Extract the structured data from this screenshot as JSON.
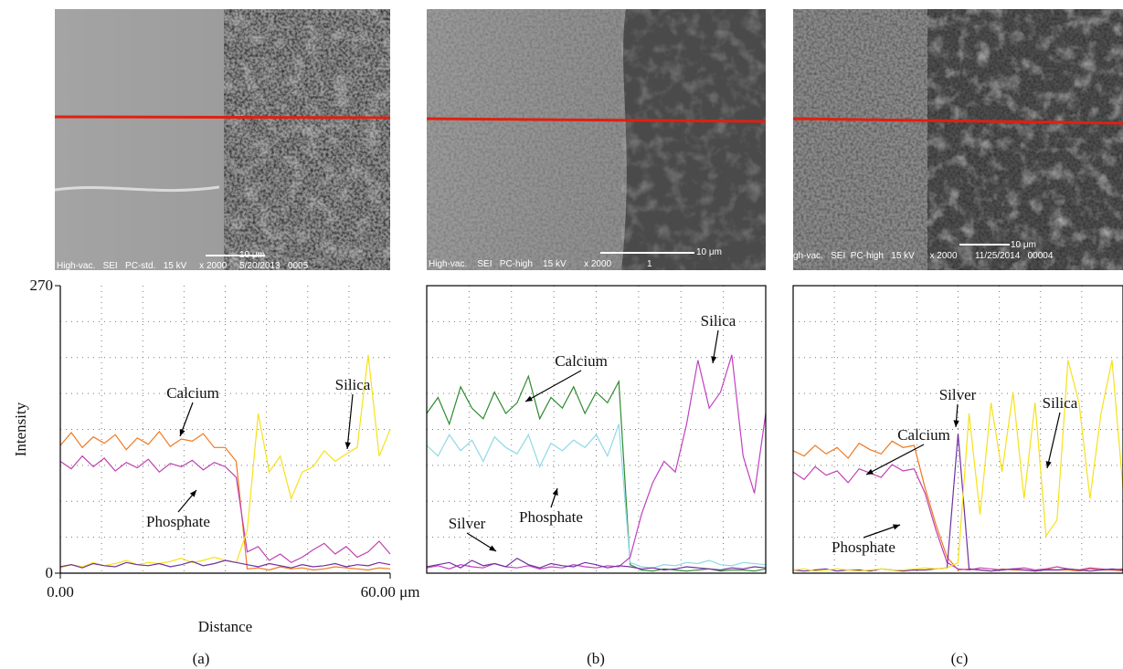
{
  "images": [
    {
      "info": "High-vac.   SEI   PC-std.   15 kV     x 2000     5/20/2013   0005",
      "scale_bar": "10 μm"
    },
    {
      "info": "High-vac.    SEI   PC-high    15 kV       x 2000              1",
      "scale_bar": "10 μm"
    },
    {
      "info": "gh-vac.   SEI  PC-high   15 kV      x 2000       11/25/2014   00004",
      "scale_bar": "10 μm"
    }
  ],
  "chart_data": [
    {
      "type": "line",
      "caption": "(a)",
      "xlabel": "Distance",
      "ylabel": "Intensity",
      "xlim": [
        0,
        60
      ],
      "ylim": [
        0,
        270
      ],
      "xticks": [
        {
          "value": 0,
          "label": "0.00"
        },
        {
          "value": 60,
          "label": "60.00 μm"
        }
      ],
      "yticks": [
        0,
        270
      ],
      "grid": true,
      "x": [
        0,
        2,
        4,
        6,
        8,
        10,
        12,
        14,
        16,
        18,
        20,
        22,
        24,
        26,
        28,
        30,
        32,
        34,
        36,
        38,
        40,
        42,
        44,
        46,
        48,
        50,
        52,
        54,
        56,
        58,
        60
      ],
      "series": [
        {
          "name": "Calcium",
          "color": "#f07820",
          "values": [
            120,
            132,
            118,
            128,
            122,
            130,
            116,
            127,
            121,
            133,
            119,
            126,
            124,
            131,
            118,
            118,
            105,
            4,
            5,
            3,
            6,
            4,
            5,
            3,
            4,
            6,
            5,
            4,
            3,
            5,
            4
          ]
        },
        {
          "name": "Phosphate",
          "color": "#c040b0",
          "values": [
            105,
            98,
            110,
            100,
            108,
            96,
            104,
            99,
            107,
            95,
            103,
            100,
            106,
            97,
            104,
            100,
            90,
            20,
            25,
            12,
            18,
            10,
            15,
            22,
            28,
            18,
            25,
            15,
            20,
            30,
            18
          ]
        },
        {
          "name": "Silica",
          "color": "#f5e21a",
          "values": [
            5,
            8,
            6,
            10,
            7,
            9,
            12,
            8,
            10,
            9,
            11,
            14,
            10,
            12,
            15,
            12,
            10,
            40,
            150,
            95,
            110,
            70,
            95,
            100,
            115,
            105,
            112,
            118,
            205,
            110,
            135
          ]
        },
        {
          "color": "#7030a0",
          "values": [
            6,
            8,
            5,
            9,
            7,
            6,
            10,
            8,
            7,
            9,
            6,
            8,
            11,
            7,
            9,
            12,
            10,
            8,
            6,
            9,
            7,
            5,
            8,
            6,
            7,
            9,
            6,
            8,
            7,
            10,
            8
          ]
        }
      ]
    },
    {
      "type": "line",
      "caption": "(b)",
      "xlim": [
        0,
        60
      ],
      "ylim": [
        0,
        270
      ],
      "grid": true,
      "x": [
        0,
        2,
        4,
        6,
        8,
        10,
        12,
        14,
        16,
        18,
        20,
        22,
        24,
        26,
        28,
        30,
        32,
        34,
        36,
        38,
        40,
        42,
        44,
        46,
        48,
        50,
        52,
        54,
        56,
        58,
        60
      ],
      "series": [
        {
          "name": "Calcium",
          "color": "#2e8b2e",
          "values": [
            150,
            165,
            140,
            175,
            155,
            145,
            170,
            150,
            160,
            185,
            145,
            165,
            155,
            175,
            150,
            170,
            160,
            180,
            8,
            3,
            2,
            4,
            3,
            2,
            3,
            4,
            2,
            3,
            3,
            2,
            4
          ]
        },
        {
          "name": "Phosphate",
          "color": "#8fd8e6",
          "values": [
            120,
            110,
            130,
            115,
            125,
            105,
            128,
            118,
            112,
            130,
            100,
            122,
            115,
            125,
            118,
            130,
            110,
            140,
            10,
            6,
            5,
            8,
            7,
            10,
            9,
            12,
            8,
            7,
            10,
            9,
            8
          ]
        },
        {
          "name": "Silica",
          "color": "#c040c0",
          "values": [
            5,
            7,
            4,
            8,
            6,
            5,
            9,
            6,
            5,
            7,
            4,
            6,
            5,
            8,
            6,
            5,
            7,
            6,
            15,
            55,
            85,
            105,
            95,
            140,
            200,
            155,
            170,
            205,
            110,
            75,
            150
          ]
        },
        {
          "name": "Silver",
          "color": "#7030a0",
          "values": [
            6,
            8,
            10,
            5,
            12,
            7,
            9,
            6,
            14,
            8,
            5,
            9,
            7,
            6,
            10,
            8,
            5,
            7,
            6,
            4,
            5,
            3,
            4,
            6,
            5,
            4,
            3,
            5,
            4,
            6,
            5
          ]
        }
      ]
    },
    {
      "type": "line",
      "caption": "(c)",
      "xlim": [
        0,
        60
      ],
      "ylim": [
        0,
        270
      ],
      "grid": true,
      "x": [
        0,
        2,
        4,
        6,
        8,
        10,
        12,
        14,
        16,
        18,
        20,
        22,
        24,
        26,
        28,
        30,
        32,
        34,
        36,
        38,
        40,
        42,
        44,
        46,
        48,
        50,
        52,
        54,
        56,
        58,
        60
      ],
      "series": [
        {
          "name": "Calcium",
          "color": "#f07820",
          "values": [
            115,
            110,
            120,
            112,
            118,
            108,
            122,
            116,
            112,
            124,
            118,
            120,
            80,
            45,
            15,
            3,
            4,
            3,
            2,
            4,
            3,
            3,
            2,
            4,
            3,
            3,
            2,
            4,
            3,
            3,
            2
          ]
        },
        {
          "name": "Phosphate",
          "color": "#c040b0",
          "values": [
            95,
            88,
            100,
            92,
            96,
            85,
            98,
            94,
            90,
            102,
            96,
            98,
            75,
            40,
            10,
            4,
            3,
            5,
            4,
            3,
            4,
            5,
            3,
            4,
            6,
            4,
            3,
            5,
            4,
            3,
            4
          ]
        },
        {
          "name": "Silver",
          "color": "#7030a0",
          "values": [
            3,
            2,
            3,
            4,
            2,
            3,
            3,
            2,
            4,
            3,
            2,
            3,
            3,
            4,
            5,
            131,
            4,
            3,
            2,
            3,
            4,
            3,
            2,
            3,
            3,
            4,
            3,
            2,
            3,
            4,
            3
          ]
        },
        {
          "name": "Silica",
          "color": "#f5e21a",
          "values": [
            3,
            4,
            2,
            3,
            4,
            3,
            2,
            3,
            4,
            3,
            3,
            4,
            5,
            4,
            5,
            10,
            150,
            55,
            160,
            95,
            170,
            70,
            160,
            35,
            50,
            200,
            160,
            70,
            150,
            200,
            80
          ]
        }
      ]
    }
  ]
}
